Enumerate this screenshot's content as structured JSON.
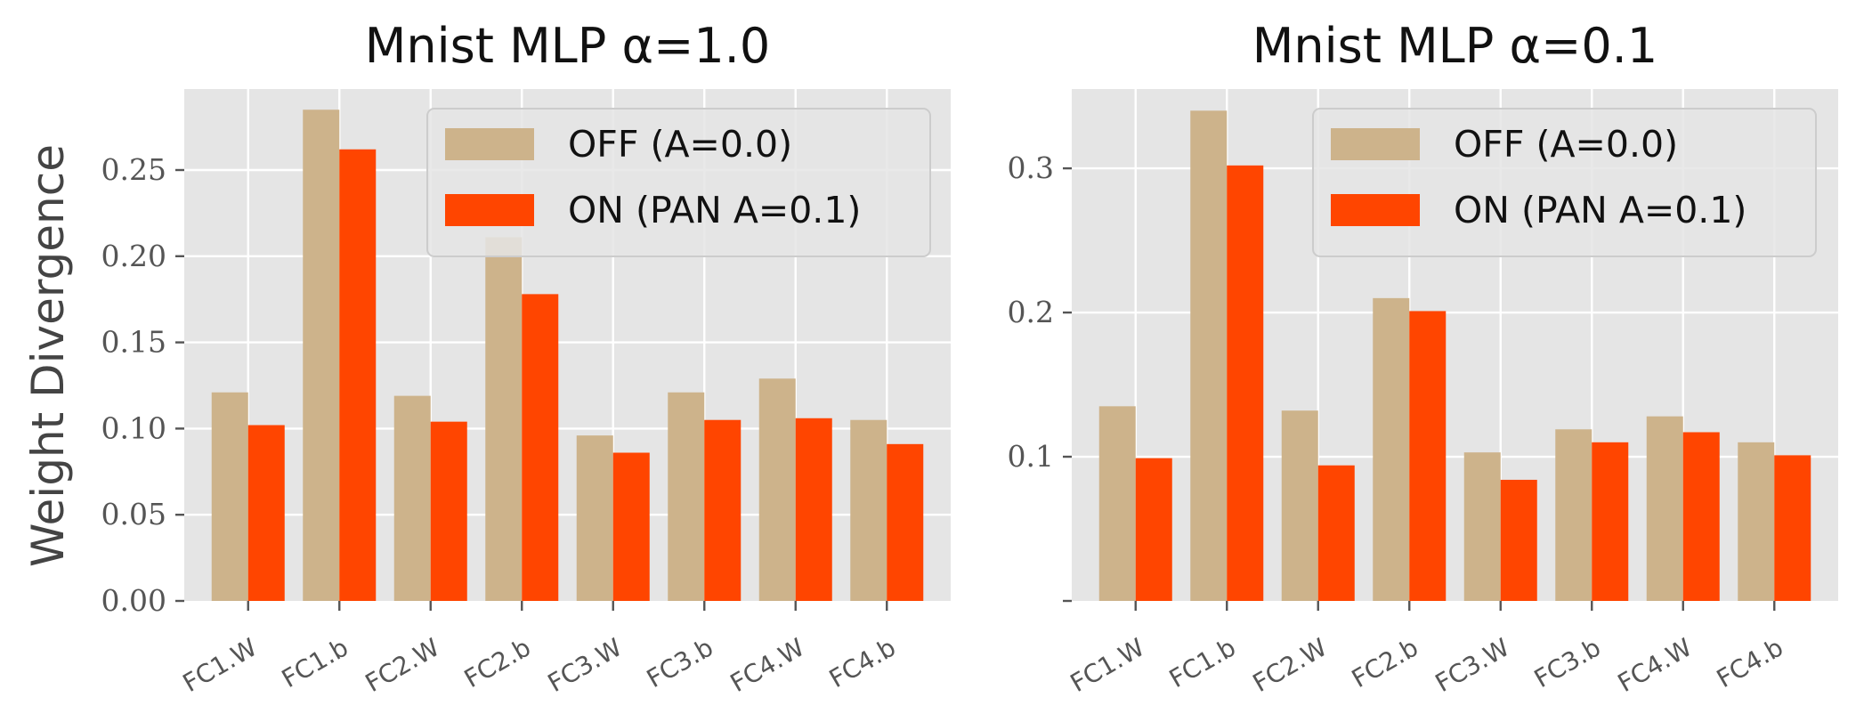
{
  "chart_data": [
    {
      "type": "bar",
      "title": "Mnist MLP α=1.0",
      "ylabel": "Weight Divergence",
      "categories": [
        "FC1.W",
        "FC1.b",
        "FC2.W",
        "FC2.b",
        "FC3.W",
        "FC3.b",
        "FC4.W",
        "FC4.b"
      ],
      "series": [
        {
          "name": "OFF (A=0.0)",
          "color": "#cdb38b",
          "values": [
            0.121,
            0.285,
            0.119,
            0.211,
            0.096,
            0.121,
            0.129,
            0.105
          ]
        },
        {
          "name": "ON (PAN  A=0.1)",
          "color": "#ff4500",
          "values": [
            0.102,
            0.262,
            0.104,
            0.178,
            0.086,
            0.105,
            0.106,
            0.091
          ]
        }
      ],
      "ylim": [
        0,
        0.297
      ],
      "yticks": [
        0.0,
        0.05,
        0.1,
        0.15,
        0.2,
        0.25
      ],
      "ytick_labels": [
        "0.00",
        "0.05",
        "0.10",
        "0.15",
        "0.20",
        "0.25"
      ],
      "legend": "upper-right",
      "grid": true
    },
    {
      "type": "bar",
      "title": "Mnist MLP α=0.1",
      "ylabel": "",
      "categories": [
        "FC1.W",
        "FC1.b",
        "FC2.W",
        "FC2.b",
        "FC3.W",
        "FC3.b",
        "FC4.W",
        "FC4.b"
      ],
      "series": [
        {
          "name": "OFF (A=0.0)",
          "color": "#cdb38b",
          "values": [
            0.135,
            0.34,
            0.132,
            0.21,
            0.103,
            0.119,
            0.128,
            0.11
          ]
        },
        {
          "name": "ON (PAN  A=0.1)",
          "color": "#ff4500",
          "values": [
            0.099,
            0.302,
            0.094,
            0.201,
            0.084,
            0.11,
            0.117,
            0.101
          ]
        }
      ],
      "ylim": [
        0,
        0.355
      ],
      "yticks": [
        0.0,
        0.1,
        0.2,
        0.3
      ],
      "ytick_labels": [
        "",
        "0.1",
        "0.2",
        "0.3"
      ],
      "legend": "upper-right",
      "grid": true
    }
  ]
}
